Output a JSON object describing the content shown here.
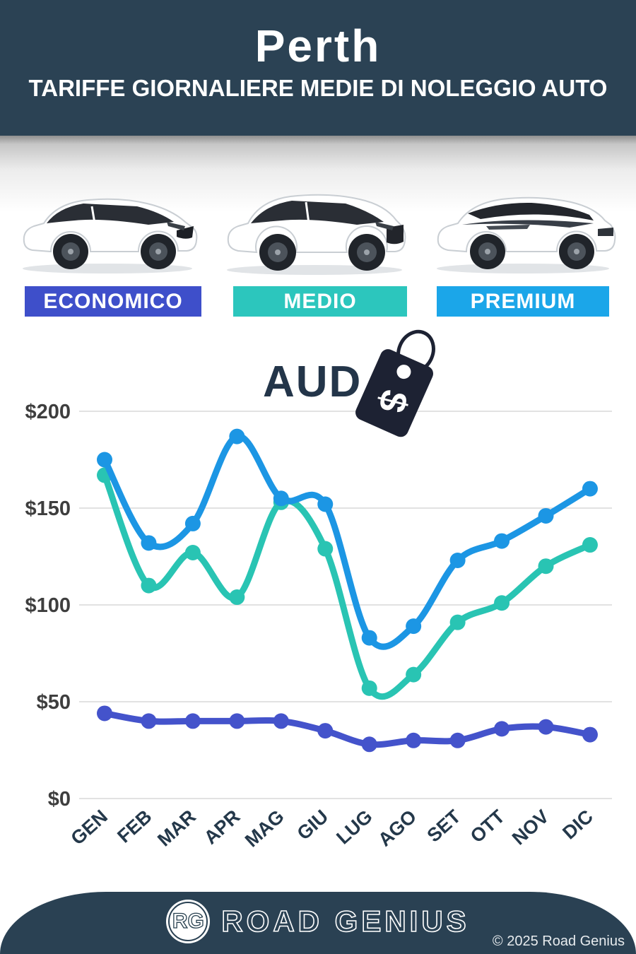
{
  "header": {
    "city": "Perth",
    "subtitle": "TARIFFE GIORNALIERE MEDIE DI NOLEGGIO AUTO"
  },
  "categories": {
    "items": [
      {
        "label": "ECONOMICO",
        "color": "#3e4fca",
        "car": "white-hatchback"
      },
      {
        "label": "MEDIO",
        "color": "#2cc6bd",
        "car": "white-suv"
      },
      {
        "label": "PREMIUM",
        "color": "#1ba6e9",
        "car": "white-luxury-suv"
      }
    ]
  },
  "currency": {
    "label": "AUD",
    "tag_symbol": "$",
    "tag_icon": "price-tag-icon"
  },
  "chart_data": {
    "type": "line",
    "categories": [
      "GEN",
      "FEB",
      "MAR",
      "APR",
      "MAG",
      "GIU",
      "LUG",
      "AGO",
      "SET",
      "OTT",
      "NOV",
      "DIC"
    ],
    "series": [
      {
        "name": "PREMIUM",
        "color": "#1c96e4",
        "values": [
          175,
          132,
          142,
          187,
          155,
          152,
          83,
          89,
          123,
          133,
          146,
          160
        ]
      },
      {
        "name": "MEDIO",
        "color": "#29c4b3",
        "values": [
          167,
          110,
          127,
          104,
          153,
          129,
          57,
          64,
          91,
          101,
          120,
          131
        ]
      },
      {
        "name": "ECONOMICO",
        "color": "#4453cb",
        "values": [
          44,
          40,
          40,
          40,
          40,
          35,
          28,
          30,
          30,
          36,
          37,
          33
        ]
      }
    ],
    "y_ticks": [
      0,
      50,
      100,
      150,
      200
    ],
    "y_tick_prefix": "$",
    "ylim": [
      0,
      200
    ],
    "grid": true,
    "legend_position": "none",
    "grid_color": "#d8d8d8",
    "y_label_color": "#3e3e3e",
    "x_label_color": "#24384a"
  },
  "footer": {
    "logo_text": "RG",
    "brand": "ROAD GENIUS",
    "copyright": "© 2025 Road Genius"
  }
}
